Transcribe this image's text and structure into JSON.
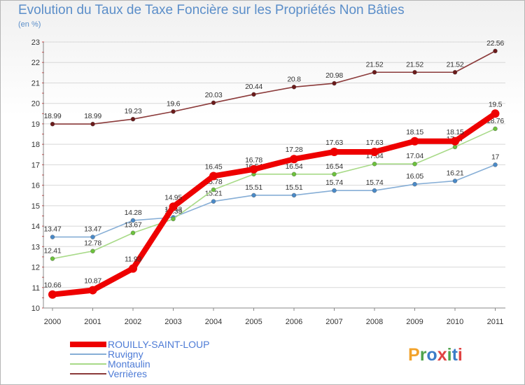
{
  "header": {
    "title": "Evolution du Taux de Taxe Foncière sur les Propriétés Non Bâties",
    "subtitle": "(en %)"
  },
  "logo": {
    "text": "Proxiti",
    "colors": [
      "#f2a22a",
      "#4da34b",
      "#3c7cc7",
      "#e04343",
      "#4da34b",
      "#3c7cc7",
      "#e04343"
    ]
  },
  "chart_data": {
    "type": "line",
    "x": [
      "2000",
      "2001",
      "2002",
      "2003",
      "2004",
      "2005",
      "2006",
      "2007",
      "2008",
      "2009",
      "2010",
      "2011"
    ],
    "ylim": [
      10,
      23
    ],
    "yticks": [
      10,
      11,
      12,
      13,
      14,
      15,
      16,
      17,
      18,
      19,
      20,
      21,
      22,
      23
    ],
    "grid": true,
    "legend_position": "bottom-left",
    "series": [
      {
        "name": "Verrières",
        "color": "#8b3a3a",
        "marker": "#6b1a1a",
        "values": [
          18.99,
          18.99,
          19.23,
          19.6,
          20.03,
          20.44,
          20.8,
          20.98,
          21.52,
          21.52,
          21.52,
          22.56
        ],
        "labels": [
          "18.99",
          "18.99",
          "19.23",
          "19.6",
          "20.03",
          "20.44",
          "20.8",
          "20.98",
          "21.52",
          "21.52",
          "21.52",
          "22.56"
        ]
      },
      {
        "name": "Ruvigny",
        "color": "#86aed6",
        "marker": "#4a8ac8",
        "values": [
          13.47,
          13.47,
          14.28,
          14.43,
          15.21,
          15.51,
          15.51,
          15.74,
          15.74,
          16.05,
          16.21,
          17
        ],
        "labels": [
          "13.47",
          "13.47",
          "14.28",
          "14.43",
          "15.21",
          "15.51",
          "15.51",
          "15.74",
          "15.74",
          "16.05",
          "16.21",
          "17"
        ]
      },
      {
        "name": "Montaulin",
        "color": "#a8da88",
        "marker": "#6cc23c",
        "values": [
          12.41,
          12.78,
          13.67,
          14.35,
          15.78,
          16.54,
          16.54,
          16.54,
          17.04,
          17.04,
          17.87,
          18.76
        ],
        "labels": [
          "12.41",
          "12.78",
          "13.67",
          "14.35",
          "15.78",
          "16.54",
          "16.54",
          "16.54",
          "17.04",
          "17.04",
          "17.87",
          "18.76"
        ]
      },
      {
        "name": "ROUILLY-SAINT-LOUP",
        "color": "#ee0000",
        "marker": "#ee0000",
        "values": [
          10.66,
          10.87,
          11.93,
          14.95,
          16.45,
          16.78,
          17.28,
          17.63,
          17.63,
          18.15,
          18.15,
          19.5
        ],
        "labels": [
          "10.66",
          "10.87",
          "11.93",
          "14.95",
          "16.45",
          "16.78",
          "17.28",
          "17.63",
          "17.63",
          "18.15",
          "18.15",
          "19.5"
        ]
      }
    ]
  }
}
